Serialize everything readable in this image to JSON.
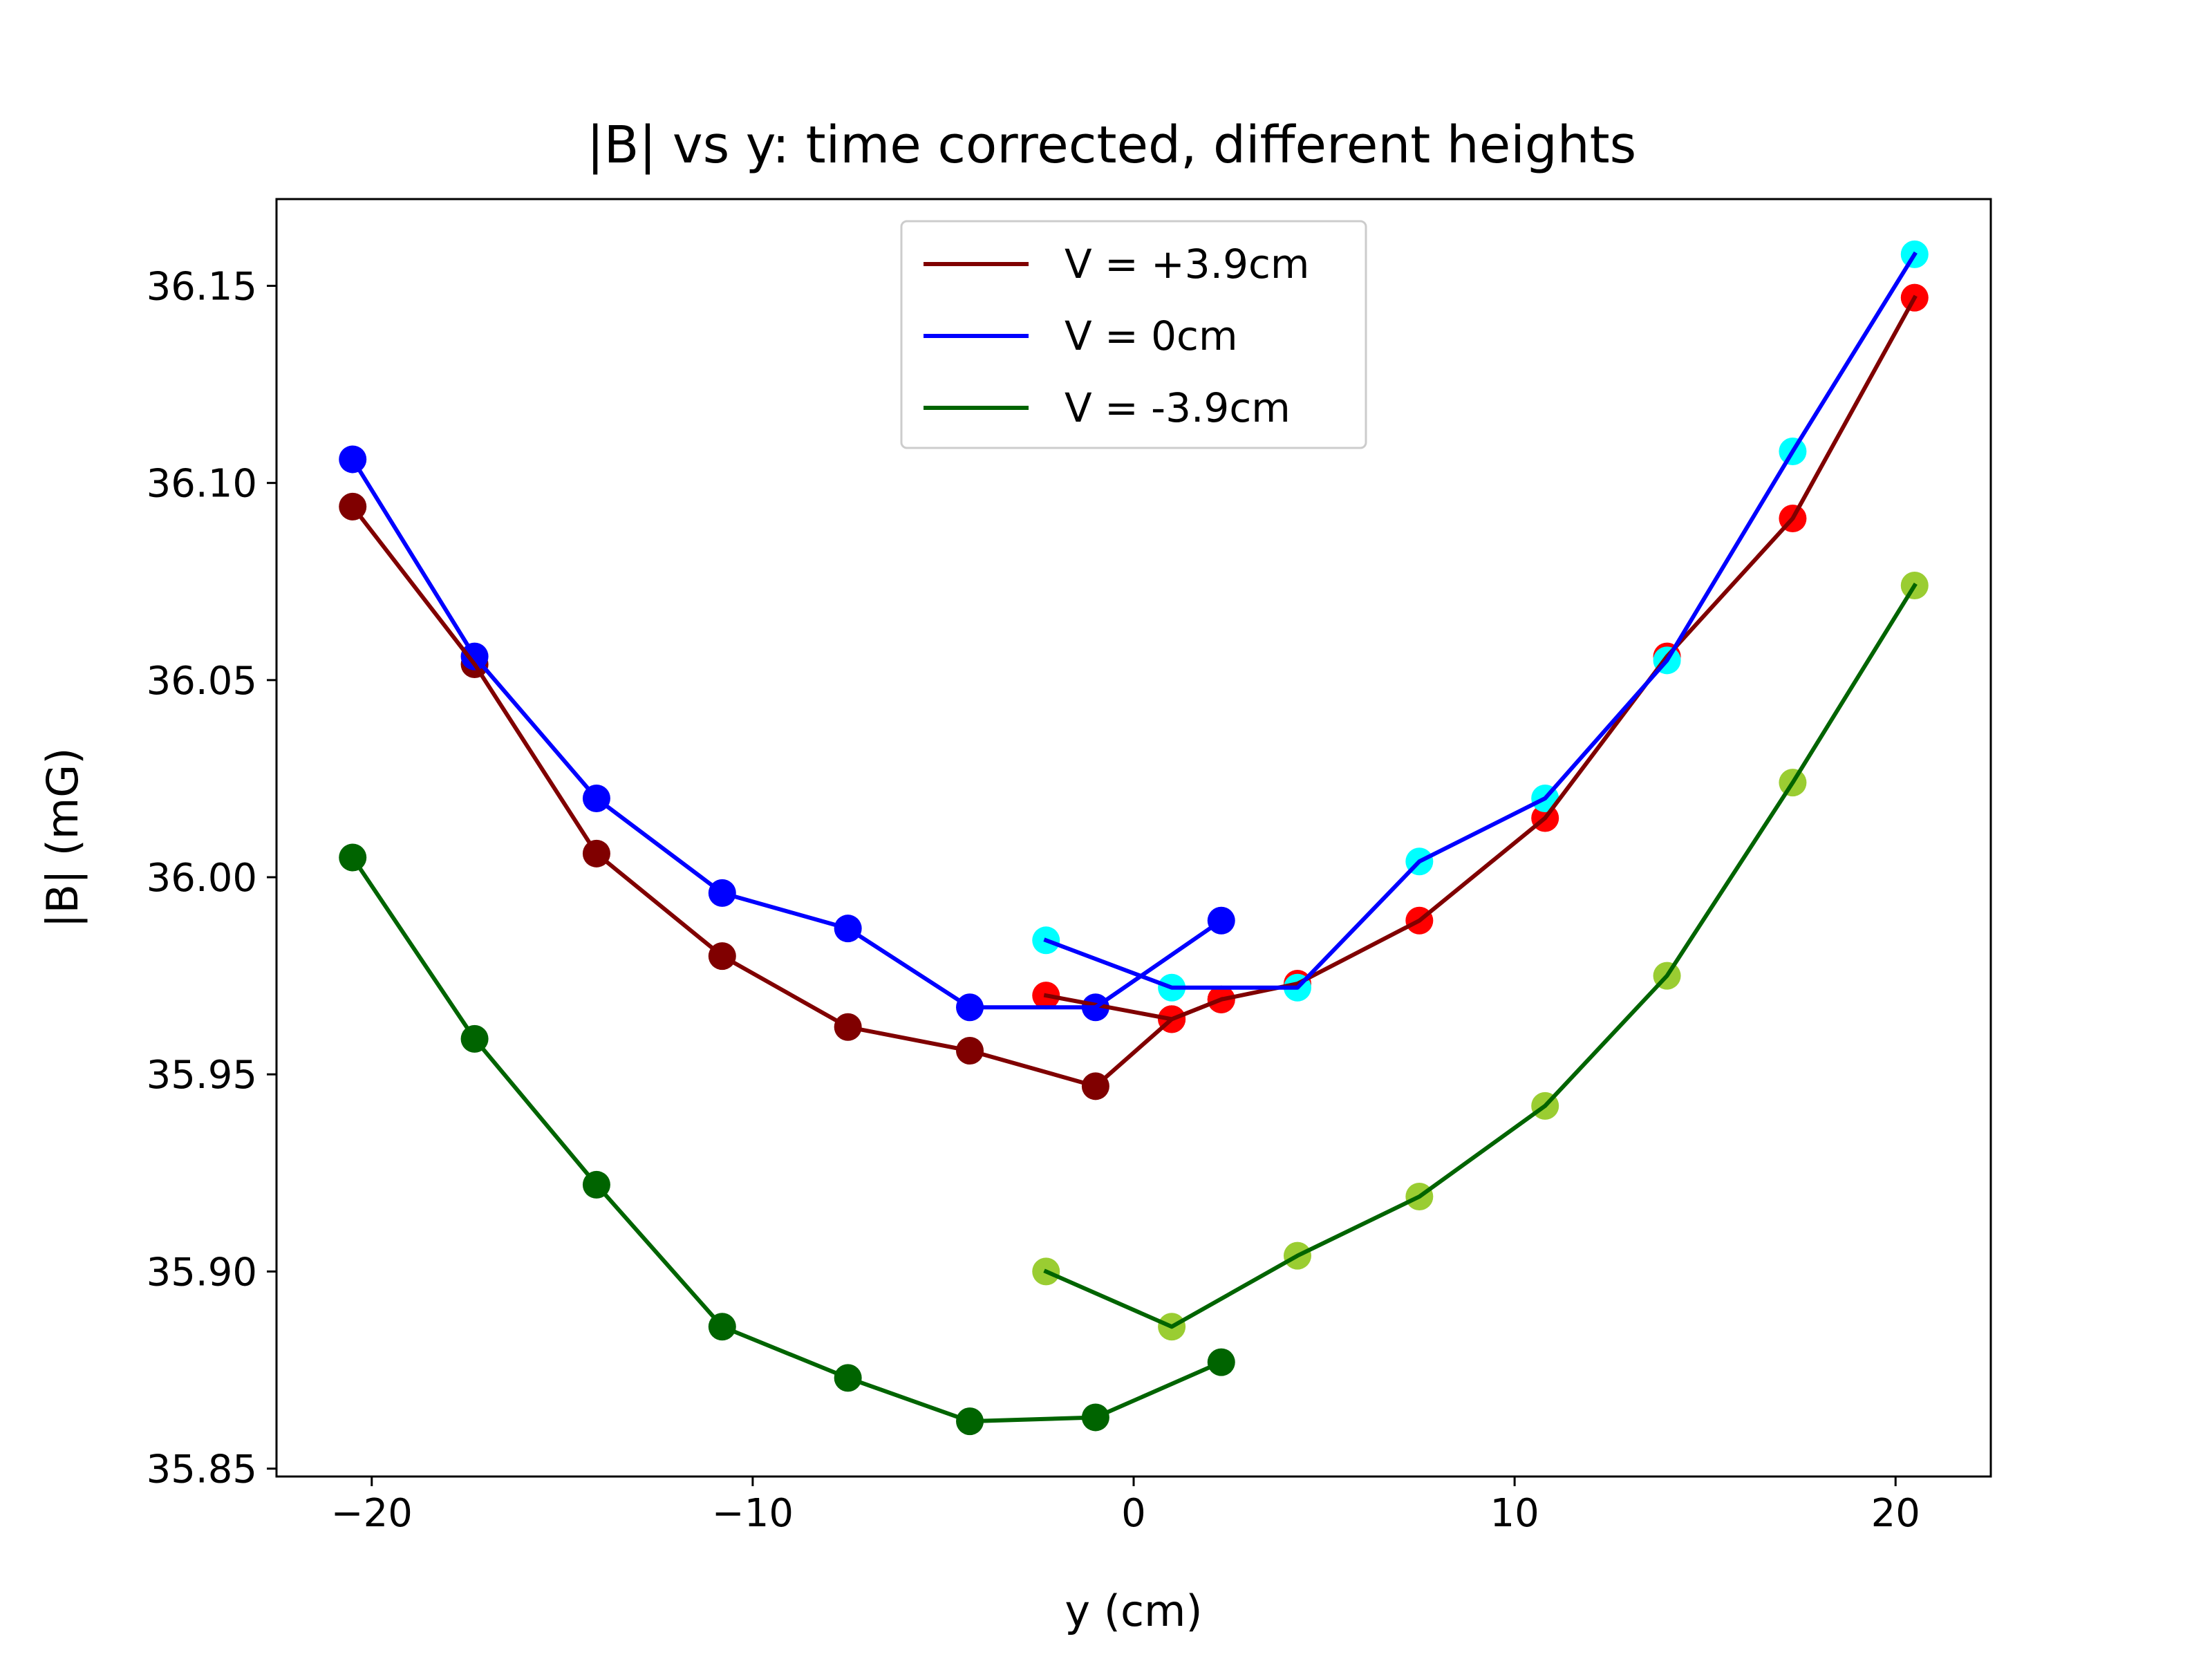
{
  "chart_data": {
    "type": "line",
    "title": "|B| vs y: time corrected, different heights",
    "xlabel": "y (cm)",
    "ylabel": "|B| (mG)",
    "xlim": [
      -22.5,
      22.5
    ],
    "ylim": [
      35.848,
      36.172
    ],
    "xticks": [
      -20,
      -10,
      0,
      10,
      20
    ],
    "xtick_labels": [
      "−20",
      "−10",
      "0",
      "10",
      "20"
    ],
    "yticks": [
      35.85,
      35.9,
      35.95,
      36.0,
      36.05,
      36.1,
      36.15
    ],
    "ytick_labels": [
      "35.85",
      "35.90",
      "35.95",
      "36.00",
      "36.05",
      "36.10",
      "36.15"
    ],
    "grid": false,
    "legend_position": "upper-center",
    "legend": [
      {
        "label": "V = +3.9cm",
        "color": "#800000"
      },
      {
        "label": "V = 0cm",
        "color": "#0000ff"
      },
      {
        "label": "V = -3.9cm",
        "color": "#006400"
      }
    ],
    "series": [
      {
        "name": "V = +3.9cm",
        "line_color": "#800000",
        "segments": [
          {
            "marker_color": "#800000",
            "x": [
              -20.5,
              -17.3,
              -14.1,
              -10.8,
              -7.5,
              -4.3,
              -1.0,
              1.0,
              2.3
            ],
            "y": [
              36.094,
              36.054,
              36.006,
              35.98,
              35.962,
              35.956,
              35.947,
              35.964,
              35.969
            ]
          },
          {
            "marker_color": "#ff0000",
            "x": [
              -2.3,
              1.0,
              2.3,
              4.3,
              7.5,
              10.8,
              14.0,
              17.3,
              20.5
            ],
            "y": [
              35.97,
              35.964,
              35.969,
              35.973,
              35.989,
              36.015,
              36.056,
              36.091,
              36.147
            ]
          }
        ]
      },
      {
        "name": "V = 0cm",
        "line_color": "#0000ff",
        "segments": [
          {
            "marker_color": "#0000ff",
            "x": [
              -20.5,
              -17.3,
              -14.1,
              -10.8,
              -7.5,
              -4.3,
              -1.0,
              2.3
            ],
            "y": [
              36.106,
              36.056,
              36.02,
              35.996,
              35.987,
              35.967,
              35.967,
              35.989
            ]
          },
          {
            "marker_color": "#00ffff",
            "x": [
              -2.3,
              1.0,
              4.3,
              7.5,
              10.8,
              14.0,
              17.3,
              20.5
            ],
            "y": [
              35.984,
              35.972,
              35.972,
              36.004,
              36.02,
              36.055,
              36.108,
              36.158
            ]
          }
        ]
      },
      {
        "name": "V = -3.9cm",
        "line_color": "#006400",
        "segments": [
          {
            "marker_color": "#006400",
            "x": [
              -20.5,
              -17.3,
              -14.1,
              -10.8,
              -7.5,
              -4.3,
              -1.0,
              2.3
            ],
            "y": [
              36.005,
              35.959,
              35.922,
              35.886,
              35.873,
              35.862,
              35.863,
              35.877
            ]
          },
          {
            "marker_color": "#9acd32",
            "x": [
              -2.3,
              1.0,
              4.3,
              7.5,
              10.8,
              14.0,
              17.3,
              20.5
            ],
            "y": [
              35.9,
              35.886,
              35.904,
              35.919,
              35.942,
              35.975,
              36.024,
              36.074
            ]
          }
        ]
      }
    ]
  }
}
